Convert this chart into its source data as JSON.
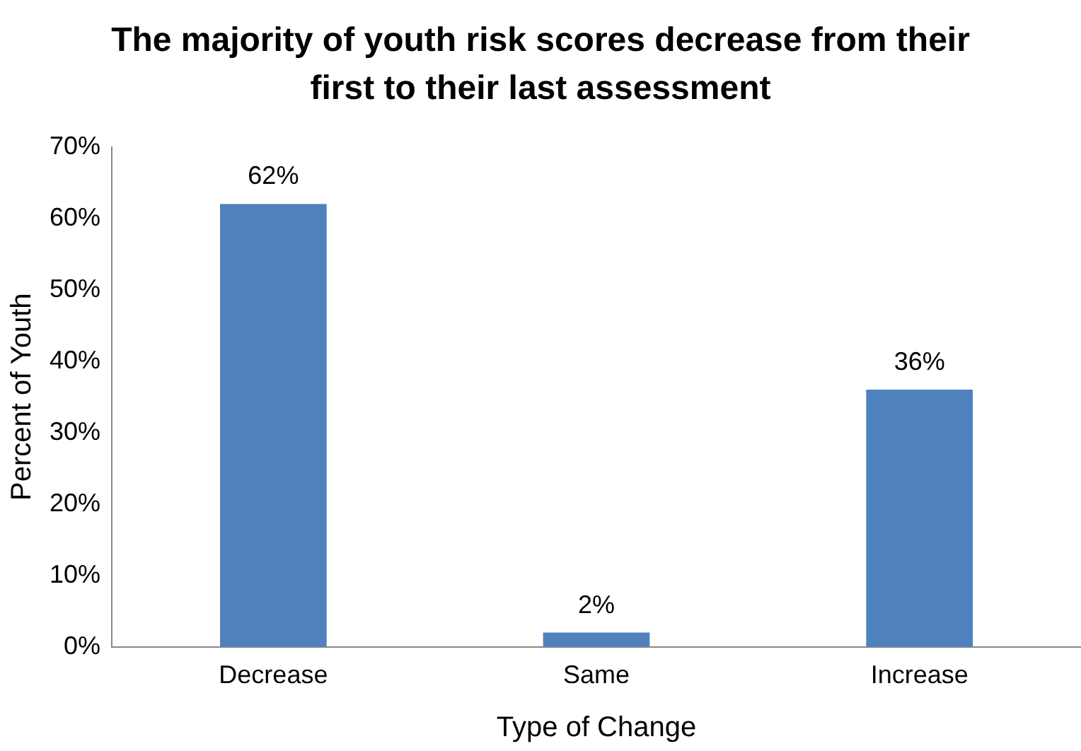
{
  "chart_data": {
    "type": "bar",
    "title": "The majority of youth risk scores decrease from their first to their last assessment",
    "xlabel": "Type of Change",
    "ylabel": "Percent of Youth",
    "categories": [
      "Decrease",
      "Same",
      "Increase"
    ],
    "values": [
      62,
      2,
      36
    ],
    "value_labels": [
      "62%",
      "2%",
      "36%"
    ],
    "color": "#4f81bd",
    "ylim": [
      0,
      70
    ],
    "yticks": [
      {
        "value": 0,
        "label": "0%"
      },
      {
        "value": 10,
        "label": "10%"
      },
      {
        "value": 20,
        "label": "20%"
      },
      {
        "value": 30,
        "label": "30%"
      },
      {
        "value": 40,
        "label": "40%"
      },
      {
        "value": 50,
        "label": "50%"
      },
      {
        "value": 60,
        "label": "60%"
      },
      {
        "value": 70,
        "label": "70%"
      }
    ],
    "grid": false,
    "legend": false
  }
}
